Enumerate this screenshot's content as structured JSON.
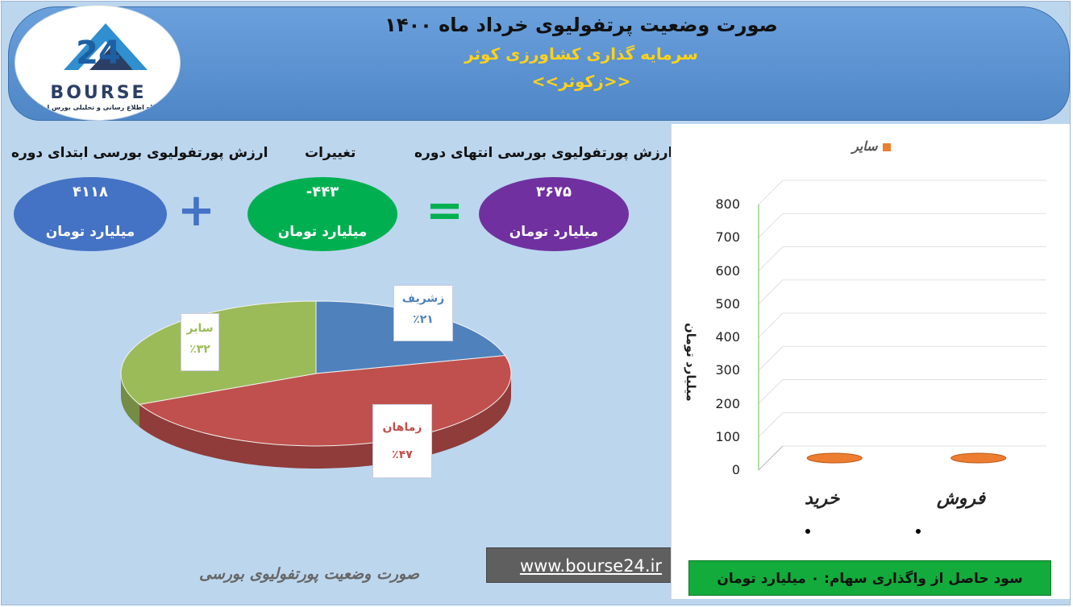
{
  "header": {
    "title": "صورت وضعیت پرتفولیوی خرداد ماه ۱۴۰۰",
    "company": "سرمایه گذاری کشاورزی کوثر",
    "symbol": "<<زکوثر>>"
  },
  "logo": {
    "number": "24",
    "text": "BOURSE",
    "subtitle": "پایگاه اطلاع رسانی و تحلیلی بورس ایران"
  },
  "summary": {
    "start_label": "ارزش پورتفولیوی بورسی ابتدای دوره",
    "change_label": "تغییرات",
    "end_label": "ارزش پورتفولیوی بورسی انتهای دوره",
    "start_value": "۴۱۱۸",
    "change_value": "-۴۴۳",
    "end_value": "۳۶۷۵",
    "unit": "میلیارد تومان",
    "plus_sign": "+",
    "equals_sign": "=",
    "colors": {
      "start": "#4472c4",
      "change": "#00b050",
      "end": "#7030a0"
    }
  },
  "chart_data": [
    {
      "type": "pie",
      "slices": [
        {
          "label": "زشریف",
          "percent_text": "٪۲۱",
          "value": 21,
          "color": "#4f81bd"
        },
        {
          "label": "زماهان",
          "percent_text": "٪۴۷",
          "value": 47,
          "color": "#c0504d"
        },
        {
          "label": "سایر",
          "percent_text": "٪۳۲",
          "value": 32,
          "color": "#9bbb59"
        }
      ]
    },
    {
      "type": "bar",
      "categories": [
        "خرید",
        "فروش"
      ],
      "series": [
        {
          "name": "سایر",
          "values": [
            0,
            0
          ],
          "color": "#ed7d31"
        }
      ],
      "ylabel": "میلیارد تومان",
      "ylim": [
        0,
        800
      ],
      "yticks": [
        "0",
        "100",
        "200",
        "300",
        "400",
        "500",
        "600",
        "700",
        "800"
      ],
      "category_markers": [
        "•",
        "•"
      ]
    }
  ],
  "footer": {
    "note": "صورت وضعیت پورتفولیوی بورسی",
    "url": "www.bourse24.ir",
    "profit_text": "سود حاصل از واگذاری سهام: ۰ میلیارد تومان"
  }
}
